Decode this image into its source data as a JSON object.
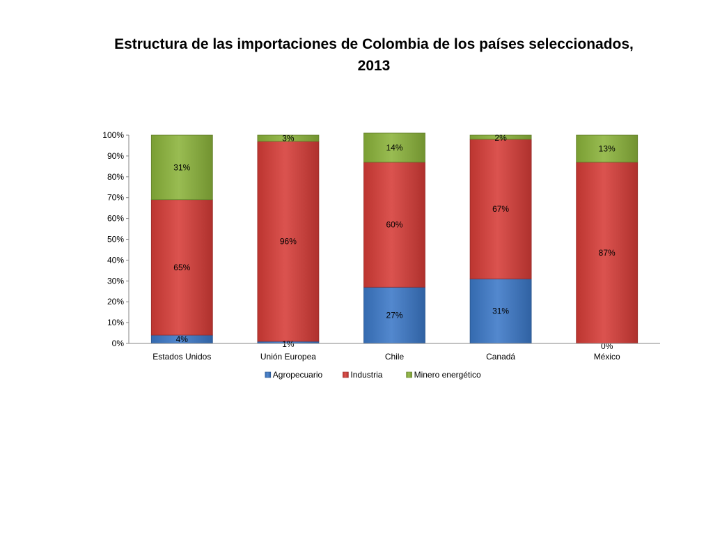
{
  "chart_data": {
    "type": "bar",
    "stacked": true,
    "title": "Estructura de las importaciones de Colombia de los países seleccionados, 2013",
    "categories": [
      "Estados Unidos",
      "Unión Europea",
      "Chile",
      "Canadá",
      "México"
    ],
    "series": [
      {
        "name": "Agropecuario",
        "color": "#3b78c7",
        "values": [
          4,
          1,
          27,
          31,
          0
        ],
        "labels": [
          "4%",
          "1%",
          "27%",
          "31%",
          "0%"
        ]
      },
      {
        "name": "Industria",
        "color": "#d63c37",
        "values": [
          65,
          96,
          60,
          67,
          87
        ],
        "labels": [
          "65%",
          "96%",
          "60%",
          "67%",
          "87%"
        ]
      },
      {
        "name": "Minero energético",
        "color": "#8bb33a",
        "values": [
          31,
          3,
          14,
          2,
          13
        ],
        "labels": [
          "31%",
          "3%",
          "14%",
          "2%",
          "13%"
        ]
      }
    ],
    "ylim": [
      0,
      100
    ],
    "yticks": [
      "0%",
      "10%",
      "20%",
      "30%",
      "40%",
      "50%",
      "60%",
      "70%",
      "80%",
      "90%",
      "100%"
    ],
    "xlabel": "",
    "ylabel": "",
    "grid": false,
    "legend": "bottom"
  }
}
